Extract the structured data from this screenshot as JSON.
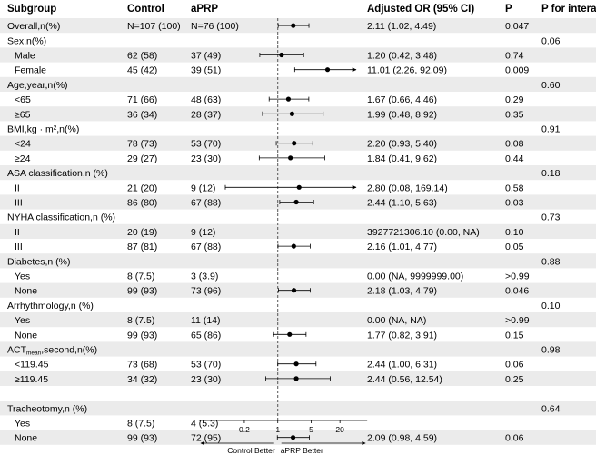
{
  "chart_data": {
    "type": "forest",
    "headers": {
      "subgroup": "Subgroup",
      "control": "Control",
      "aprp": "aPRP",
      "or": "Adjusted OR (95% CI)",
      "p": "P",
      "p_interaction": "P for interaction"
    },
    "x_scale": "log",
    "x_ticks": [
      0.2,
      1,
      5,
      20
    ],
    "x_tick_labels": [
      "0.2",
      "1",
      "5",
      "20"
    ],
    "xlim": [
      0.08,
      40
    ],
    "reference_line": 1,
    "direction_labels": {
      "left": "Control Better",
      "right": "aPRP Better"
    },
    "rows": [
      {
        "label": "Overall,n(%)",
        "indent": false,
        "control": "N=107 (100)",
        "aprp": "N=76 (100)",
        "or_text": "2.11 (1.02, 4.49)",
        "p": "0.047",
        "p_int": "",
        "or": 2.11,
        "lo": 1.02,
        "hi": 4.49,
        "band": true
      },
      {
        "label": "Sex,n(%)",
        "indent": false,
        "control": "",
        "aprp": "",
        "or_text": "",
        "p": "",
        "p_int": "0.06",
        "band": false
      },
      {
        "label": "Male",
        "indent": true,
        "control": "62 (58)",
        "aprp": "37 (49)",
        "or_text": "1.20 (0.42, 3.48)",
        "p": "0.74",
        "p_int": "",
        "or": 1.2,
        "lo": 0.42,
        "hi": 3.48,
        "band": true
      },
      {
        "label": "Female",
        "indent": true,
        "control": "45 (42)",
        "aprp": "39 (51)",
        "or_text": "11.01 (2.26, 92.09)",
        "p": "0.009",
        "p_int": "",
        "or": 11.01,
        "lo": 2.26,
        "hi": 92.09,
        "band": false
      },
      {
        "label": "Age,year,n(%)",
        "indent": false,
        "control": "",
        "aprp": "",
        "or_text": "",
        "p": "",
        "p_int": "0.60",
        "band": true
      },
      {
        "label": "<65",
        "indent": true,
        "control": "71 (66)",
        "aprp": "48 (63)",
        "or_text": "1.67 (0.66, 4.46)",
        "p": "0.29",
        "p_int": "",
        "or": 1.67,
        "lo": 0.66,
        "hi": 4.46,
        "band": false
      },
      {
        "label": "≥65",
        "indent": true,
        "control": "36 (34)",
        "aprp": "28 (37)",
        "or_text": "1.99 (0.48, 8.92)",
        "p": "0.35",
        "p_int": "",
        "or": 1.99,
        "lo": 0.48,
        "hi": 8.92,
        "band": true
      },
      {
        "label": "BMI,kg · m²,n(%)",
        "indent": false,
        "control": "",
        "aprp": "",
        "or_text": "",
        "p": "",
        "p_int": "0.91",
        "band": false
      },
      {
        "label": "<24",
        "indent": true,
        "control": "78 (73)",
        "aprp": "53 (70)",
        "or_text": "2.20 (0.93, 5.40)",
        "p": "0.08",
        "p_int": "",
        "or": 2.2,
        "lo": 0.93,
        "hi": 5.4,
        "band": true
      },
      {
        "label": "≥24",
        "indent": true,
        "control": "29 (27)",
        "aprp": "23 (30)",
        "or_text": "1.84 (0.41, 9.62)",
        "p": "0.44",
        "p_int": "",
        "or": 1.84,
        "lo": 0.41,
        "hi": 9.62,
        "band": false
      },
      {
        "label": "ASA classification,n (%)",
        "indent": false,
        "control": "",
        "aprp": "",
        "or_text": "",
        "p": "",
        "p_int": "0.18",
        "band": true
      },
      {
        "label": "II",
        "indent": true,
        "control": "21 (20)",
        "aprp": "9 (12)",
        "or_text": "2.80 (0.08, 169.14)",
        "p": "0.58",
        "p_int": "",
        "or": 2.8,
        "lo": 0.08,
        "hi": 169.14,
        "band": false
      },
      {
        "label": "III",
        "indent": true,
        "control": "86 (80)",
        "aprp": "67 (88)",
        "or_text": "2.44 (1.10, 5.63)",
        "p": "0.03",
        "p_int": "",
        "or": 2.44,
        "lo": 1.1,
        "hi": 5.63,
        "band": true
      },
      {
        "label": "NYHA classification,n (%)",
        "indent": false,
        "control": "",
        "aprp": "",
        "or_text": "",
        "p": "",
        "p_int": "0.73",
        "band": false
      },
      {
        "label": "II",
        "indent": true,
        "control": "20 (19)",
        "aprp": "9 (12)",
        "or_text": "3927721306.10 (0.00, NA)",
        "p": "0.10",
        "p_int": "",
        "band": true
      },
      {
        "label": "III",
        "indent": true,
        "control": "87 (81)",
        "aprp": "67 (88)",
        "or_text": "2.16 (1.01, 4.77)",
        "p": "0.05",
        "p_int": "",
        "or": 2.16,
        "lo": 1.01,
        "hi": 4.77,
        "band": false
      },
      {
        "label": "Diabetes,n (%)",
        "indent": false,
        "control": "",
        "aprp": "",
        "or_text": "",
        "p": "",
        "p_int": "0.88",
        "band": true
      },
      {
        "label": "Yes",
        "indent": true,
        "control": "8 (7.5)",
        "aprp": "3 (3.9)",
        "or_text": "0.00 (NA, 9999999.00)",
        "p": ">0.99",
        "p_int": "",
        "band": false
      },
      {
        "label": "None",
        "indent": true,
        "control": "99 (93)",
        "aprp": "73 (96)",
        "or_text": "2.18 (1.03, 4.79)",
        "p": "0.046",
        "p_int": "",
        "or": 2.18,
        "lo": 1.03,
        "hi": 4.79,
        "band": true
      },
      {
        "label": "Arrhythmology,n (%)",
        "indent": false,
        "control": "",
        "aprp": "",
        "or_text": "",
        "p": "",
        "p_int": "0.10",
        "band": false
      },
      {
        "label": "Yes",
        "indent": true,
        "control": "8 (7.5)",
        "aprp": "11 (14)",
        "or_text": "0.00 (NA, NA)",
        "p": ">0.99",
        "p_int": "",
        "band": true
      },
      {
        "label": "None",
        "indent": true,
        "control": "99 (93)",
        "aprp": "65 (86)",
        "or_text": "1.77 (0.82, 3.91)",
        "p": "0.15",
        "p_int": "",
        "or": 1.77,
        "lo": 0.82,
        "hi": 3.91,
        "band": false
      },
      {
        "label": "ACT",
        "sub": "mean",
        "label_rest": ",second,n(%)",
        "indent": false,
        "control": "",
        "aprp": "",
        "or_text": "",
        "p": "",
        "p_int": "0.98",
        "band": true
      },
      {
        "label": "<119.45",
        "indent": true,
        "control": "73 (68)",
        "aprp": "53 (70)",
        "or_text": "2.44 (1.00, 6.31)",
        "p": "0.06",
        "p_int": "",
        "or": 2.44,
        "lo": 1.0,
        "hi": 6.31,
        "band": false
      },
      {
        "label": "≥119.45",
        "indent": true,
        "control": "34 (32)",
        "aprp": "23 (30)",
        "or_text": "2.44 (0.56, 12.54)",
        "p": "0.25",
        "p_int": "",
        "or": 2.44,
        "lo": 0.56,
        "hi": 12.54,
        "band": true
      },
      {
        "label": "",
        "indent": false,
        "control": "",
        "aprp": "",
        "or_text": "",
        "p": "",
        "p_int": "",
        "band": false
      },
      {
        "label": "Tracheotomy,n (%)",
        "indent": false,
        "control": "",
        "aprp": "",
        "or_text": "",
        "p": "",
        "p_int": "0.64",
        "band": true
      },
      {
        "label": "Yes",
        "indent": true,
        "control": "8 (7.5)",
        "aprp": "4 (5.3)",
        "or_text": "",
        "p": "",
        "p_int": "",
        "band": false
      },
      {
        "label": "None",
        "indent": true,
        "control": "99 (93)",
        "aprp": "72 (95)",
        "or_text": "2.09 (0.98, 4.59)",
        "p": "0.06",
        "p_int": "",
        "or": 2.09,
        "lo": 0.98,
        "hi": 4.59,
        "band": true
      }
    ]
  }
}
